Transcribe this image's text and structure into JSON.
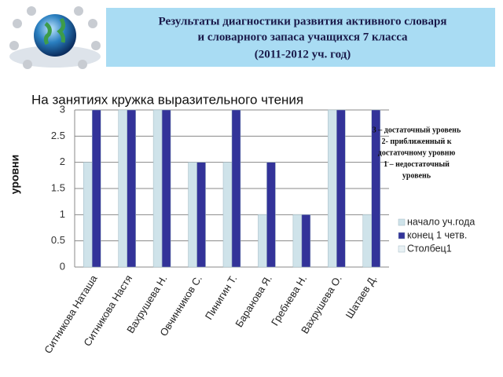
{
  "header": {
    "title_lines": [
      "Результаты диагностики развития активного словаря",
      "и словарного запаса учащихся 7 класса",
      "(2011-2012 уч. год)"
    ]
  },
  "chart_data": {
    "type": "bar",
    "title": "На занятиях кружка выразительного чтения",
    "y_label": "уровни",
    "categories": [
      "Ситникова Наташа",
      "Ситникова Настя",
      "Вахрушева Н.",
      "Овчинников С.",
      "Пинигин Т.",
      "Баранова Я.",
      "Гребнева Н.",
      "Вахрушева О.",
      "Шатаев Д."
    ],
    "series": [
      {
        "name": "начало уч.года",
        "color": "#cfe3ea",
        "values": [
          2,
          3,
          3,
          2,
          2,
          1,
          1,
          3,
          1
        ]
      },
      {
        "name": "конец 1 четв.",
        "color": "#333399",
        "values": [
          3,
          3,
          3,
          2,
          3,
          2,
          1,
          3,
          3
        ]
      },
      {
        "name": "Столбец1",
        "color": "#e8f1f4",
        "values": [
          null,
          null,
          null,
          null,
          null,
          null,
          null,
          null,
          null
        ]
      }
    ],
    "ylim": [
      0,
      3
    ],
    "yticks": [
      0,
      0.5,
      1,
      1.5,
      2,
      2.5,
      3
    ],
    "grid": true,
    "legend_position": "right",
    "annotation_lines": [
      "3 – достаточный уровень",
      "2- приближенный к",
      "достаточному уровню",
      "1 – недостаточный",
      "уровень"
    ]
  }
}
